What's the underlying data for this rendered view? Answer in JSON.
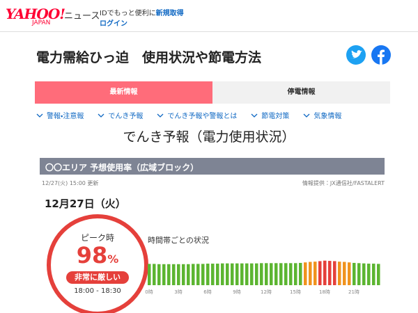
{
  "header": {
    "logo": "YAHOO!",
    "logo_sub": "JAPAN",
    "section": "ニュース",
    "promo": "IDでもっと便利に",
    "signup": "新規取得",
    "login": "ログイン"
  },
  "title": "電力需給ひっ迫　使用状況や節電方法",
  "tabs": [
    "最新情報",
    "停電情報"
  ],
  "nav": [
    "警報・注意報",
    "でんき予報",
    "でんき予報や警報とは",
    "節電対策",
    "気象情報"
  ],
  "forecast": {
    "heading": "でんき予報（電力使用状況）",
    "area_bar": "〇〇エリア 予想使用率（広域ブロック）",
    "updated": "12/27(火) 15:00 更新",
    "source": "情報提供：JX通信社/FASTALERT",
    "date": "12月27日（火）",
    "peak_label": "ピーク時",
    "peak_value": 98,
    "peak_unit": "%",
    "status": "非常に厳しい",
    "peak_time": "18:00 - 18:30",
    "hourly": {
      "title": "時間帯ごとの状況",
      "x_labels": [
        "0時",
        "3時",
        "6時",
        "9時",
        "12時",
        "15時",
        "18時",
        "21時"
      ],
      "values": [
        85,
        85,
        84,
        84,
        84,
        84,
        84,
        84,
        84,
        85,
        85,
        85,
        86,
        86,
        86,
        87,
        87,
        87,
        87,
        87,
        87,
        87,
        87,
        88,
        88,
        88,
        88,
        88,
        88,
        88,
        88,
        89,
        91,
        93,
        94,
        96,
        98,
        97,
        96,
        94,
        93,
        91,
        89,
        88,
        87,
        86,
        86,
        85
      ],
      "colors": [
        "#5cb531",
        "#5cb531",
        "#5cb531",
        "#5cb531",
        "#5cb531",
        "#5cb531",
        "#5cb531",
        "#5cb531",
        "#5cb531",
        "#5cb531",
        "#5cb531",
        "#5cb531",
        "#5cb531",
        "#5cb531",
        "#5cb531",
        "#5cb531",
        "#5cb531",
        "#5cb531",
        "#5cb531",
        "#5cb531",
        "#5cb531",
        "#5cb531",
        "#5cb531",
        "#5cb531",
        "#5cb531",
        "#5cb531",
        "#5cb531",
        "#5cb531",
        "#5cb531",
        "#5cb531",
        "#5cb531",
        "#5cb531",
        "#f0931e",
        "#f0931e",
        "#f0931e",
        "#e5403b",
        "#e5403b",
        "#e5403b",
        "#e5403b",
        "#f0931e",
        "#f0931e",
        "#f0931e",
        "#5cb531",
        "#5cb531",
        "#5cb531",
        "#5cb531",
        "#5cb531",
        "#5cb531"
      ]
    }
  }
}
